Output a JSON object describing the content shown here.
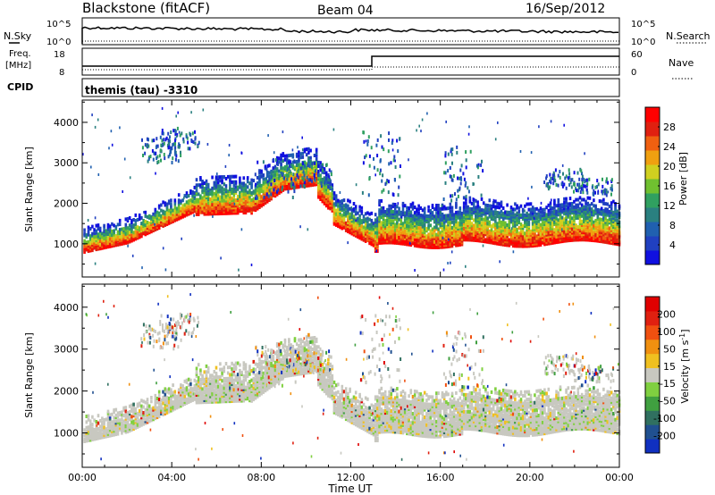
{
  "header": {
    "station": "Blackstone (fitACF)",
    "beam": "Beam 04",
    "date": "16/Sep/2012"
  },
  "top_panels": {
    "nsky_label": "N.Sky",
    "nsearch_label": "N.Search",
    "noise_ticks": [
      "10^5",
      "10^0"
    ],
    "freq_label_1": "Freq.",
    "freq_label_2": "[MHz]",
    "freq_ticks": [
      "18",
      "8"
    ],
    "nave_label": "Nave",
    "nave_ticks": [
      "60",
      "0"
    ],
    "cpid_label": "CPID",
    "cpid_text": "themis (tau) -3310"
  },
  "chart_data": [
    {
      "type": "heatmap",
      "name": "power",
      "ylabel": "Slant Range [km]",
      "yticks": [
        1000,
        2000,
        3000,
        4000
      ],
      "ylim": [
        180,
        4550
      ],
      "xticks": [
        "00:00",
        "04:00",
        "08:00",
        "12:00",
        "16:00",
        "20:00",
        "00:00"
      ],
      "xlim_hours": [
        0,
        24
      ],
      "colorbar": {
        "label": "Power [dB]",
        "ticks": [
          "28",
          "24",
          "20",
          "16",
          "12",
          "8",
          "4"
        ],
        "colors": [
          "#1010e0",
          "#2040c0",
          "#2060b0",
          "#2a8080",
          "#30a060",
          "#70c030",
          "#d0d020",
          "#f0a010",
          "#f06010",
          "#e02010",
          "#ff0000"
        ]
      }
    },
    {
      "type": "heatmap",
      "name": "velocity",
      "ylabel": "Slant Range [km]",
      "yticks": [
        1000,
        2000,
        3000,
        4000
      ],
      "ylim": [
        180,
        4550
      ],
      "xticks": [
        "00:00",
        "04:00",
        "08:00",
        "12:00",
        "16:00",
        "20:00",
        "00:00"
      ],
      "xlim_hours": [
        0,
        24
      ],
      "xlabel": "Time UT",
      "colorbar": {
        "label": "Velocity [m s",
        "label_sup": "-1",
        "label_end": "]",
        "ticks": [
          "200",
          "100",
          "50",
          "15",
          "-15",
          "-50",
          "-100",
          "-200"
        ],
        "colors": [
          "#1030c0",
          "#205090",
          "#307060",
          "#40a040",
          "#80d040",
          "#c8c8c0",
          "#f0c020",
          "#f09010",
          "#f05010",
          "#e02010",
          "#e00000"
        ]
      }
    }
  ]
}
